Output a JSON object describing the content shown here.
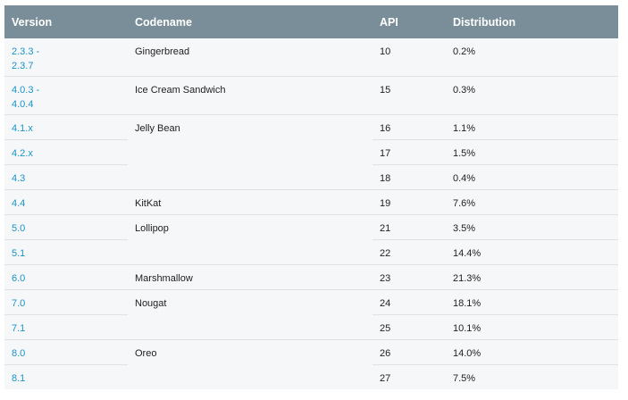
{
  "headers": {
    "version": "Version",
    "codename": "Codename",
    "api": "API",
    "distribution": "Distribution"
  },
  "rows": [
    {
      "version": "2.3.3 -\n2.3.7",
      "codename": "Gingerbread",
      "api": "10",
      "dist": "0.2%"
    },
    {
      "version": "4.0.3 -\n4.0.4",
      "codename": "Ice Cream Sandwich",
      "api": "15",
      "dist": "0.3%"
    },
    {
      "version": "4.1.x",
      "codename": "Jelly Bean",
      "api": "16",
      "dist": "1.1%"
    },
    {
      "version": "4.2.x",
      "codename": "",
      "api": "17",
      "dist": "1.5%"
    },
    {
      "version": "4.3",
      "codename": "",
      "api": "18",
      "dist": "0.4%"
    },
    {
      "version": "4.4",
      "codename": "KitKat",
      "api": "19",
      "dist": "7.6%"
    },
    {
      "version": "5.0",
      "codename": "Lollipop",
      "api": "21",
      "dist": "3.5%"
    },
    {
      "version": "5.1",
      "codename": "",
      "api": "22",
      "dist": "14.4%"
    },
    {
      "version": "6.0",
      "codename": "Marshmallow",
      "api": "23",
      "dist": "21.3%"
    },
    {
      "version": "7.0",
      "codename": "Nougat",
      "api": "24",
      "dist": "18.1%"
    },
    {
      "version": "7.1",
      "codename": "",
      "api": "25",
      "dist": "10.1%"
    },
    {
      "version": "8.0",
      "codename": "Oreo",
      "api": "26",
      "dist": "14.0%"
    },
    {
      "version": "8.1",
      "codename": "",
      "api": "27",
      "dist": "7.5%"
    }
  ]
}
